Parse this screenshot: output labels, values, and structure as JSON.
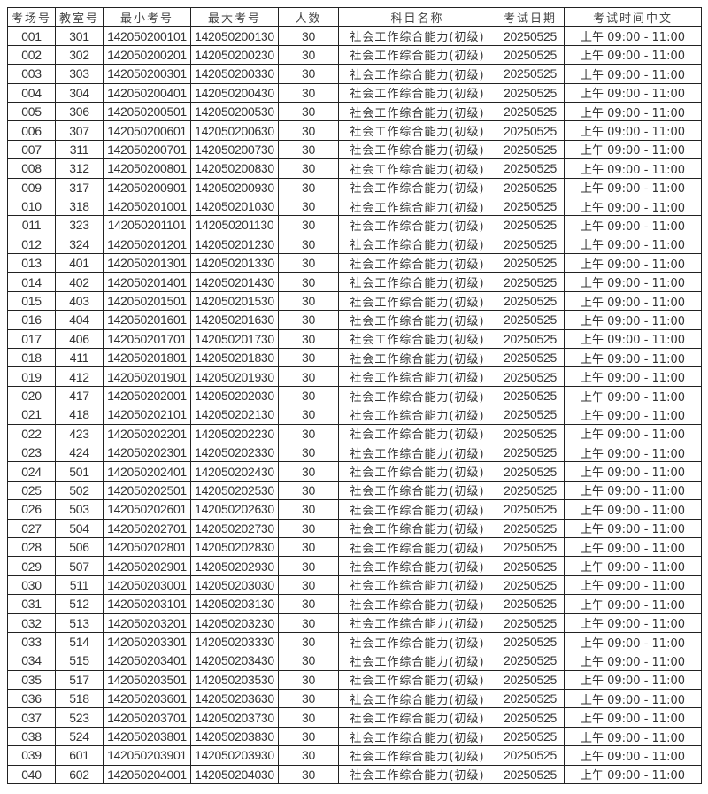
{
  "table": {
    "headers": [
      "考场号",
      "教室号",
      "最小考号",
      "最大考号",
      "人数",
      "科目名称",
      "考试日期",
      "考试时间中文"
    ],
    "rows": [
      [
        "001",
        "301",
        "142050200101",
        "142050200130",
        "30",
        "社会工作综合能力(初级)",
        "20250525",
        "上午 09:00 - 11:00"
      ],
      [
        "002",
        "302",
        "142050200201",
        "142050200230",
        "30",
        "社会工作综合能力(初级)",
        "20250525",
        "上午 09:00 - 11:00"
      ],
      [
        "003",
        "303",
        "142050200301",
        "142050200330",
        "30",
        "社会工作综合能力(初级)",
        "20250525",
        "上午 09:00 - 11:00"
      ],
      [
        "004",
        "304",
        "142050200401",
        "142050200430",
        "30",
        "社会工作综合能力(初级)",
        "20250525",
        "上午 09:00 - 11:00"
      ],
      [
        "005",
        "306",
        "142050200501",
        "142050200530",
        "30",
        "社会工作综合能力(初级)",
        "20250525",
        "上午 09:00 - 11:00"
      ],
      [
        "006",
        "307",
        "142050200601",
        "142050200630",
        "30",
        "社会工作综合能力(初级)",
        "20250525",
        "上午 09:00 - 11:00"
      ],
      [
        "007",
        "311",
        "142050200701",
        "142050200730",
        "30",
        "社会工作综合能力(初级)",
        "20250525",
        "上午 09:00 - 11:00"
      ],
      [
        "008",
        "312",
        "142050200801",
        "142050200830",
        "30",
        "社会工作综合能力(初级)",
        "20250525",
        "上午 09:00 - 11:00"
      ],
      [
        "009",
        "317",
        "142050200901",
        "142050200930",
        "30",
        "社会工作综合能力(初级)",
        "20250525",
        "上午 09:00 - 11:00"
      ],
      [
        "010",
        "318",
        "142050201001",
        "142050201030",
        "30",
        "社会工作综合能力(初级)",
        "20250525",
        "上午 09:00 - 11:00"
      ],
      [
        "011",
        "323",
        "142050201101",
        "142050201130",
        "30",
        "社会工作综合能力(初级)",
        "20250525",
        "上午 09:00 - 11:00"
      ],
      [
        "012",
        "324",
        "142050201201",
        "142050201230",
        "30",
        "社会工作综合能力(初级)",
        "20250525",
        "上午 09:00 - 11:00"
      ],
      [
        "013",
        "401",
        "142050201301",
        "142050201330",
        "30",
        "社会工作综合能力(初级)",
        "20250525",
        "上午 09:00 - 11:00"
      ],
      [
        "014",
        "402",
        "142050201401",
        "142050201430",
        "30",
        "社会工作综合能力(初级)",
        "20250525",
        "上午 09:00 - 11:00"
      ],
      [
        "015",
        "403",
        "142050201501",
        "142050201530",
        "30",
        "社会工作综合能力(初级)",
        "20250525",
        "上午 09:00 - 11:00"
      ],
      [
        "016",
        "404",
        "142050201601",
        "142050201630",
        "30",
        "社会工作综合能力(初级)",
        "20250525",
        "上午 09:00 - 11:00"
      ],
      [
        "017",
        "406",
        "142050201701",
        "142050201730",
        "30",
        "社会工作综合能力(初级)",
        "20250525",
        "上午 09:00 - 11:00"
      ],
      [
        "018",
        "411",
        "142050201801",
        "142050201830",
        "30",
        "社会工作综合能力(初级)",
        "20250525",
        "上午 09:00 - 11:00"
      ],
      [
        "019",
        "412",
        "142050201901",
        "142050201930",
        "30",
        "社会工作综合能力(初级)",
        "20250525",
        "上午 09:00 - 11:00"
      ],
      [
        "020",
        "417",
        "142050202001",
        "142050202030",
        "30",
        "社会工作综合能力(初级)",
        "20250525",
        "上午 09:00 - 11:00"
      ],
      [
        "021",
        "418",
        "142050202101",
        "142050202130",
        "30",
        "社会工作综合能力(初级)",
        "20250525",
        "上午 09:00 - 11:00"
      ],
      [
        "022",
        "423",
        "142050202201",
        "142050202230",
        "30",
        "社会工作综合能力(初级)",
        "20250525",
        "上午 09:00 - 11:00"
      ],
      [
        "023",
        "424",
        "142050202301",
        "142050202330",
        "30",
        "社会工作综合能力(初级)",
        "20250525",
        "上午 09:00 - 11:00"
      ],
      [
        "024",
        "501",
        "142050202401",
        "142050202430",
        "30",
        "社会工作综合能力(初级)",
        "20250525",
        "上午 09:00 - 11:00"
      ],
      [
        "025",
        "502",
        "142050202501",
        "142050202530",
        "30",
        "社会工作综合能力(初级)",
        "20250525",
        "上午 09:00 - 11:00"
      ],
      [
        "026",
        "503",
        "142050202601",
        "142050202630",
        "30",
        "社会工作综合能力(初级)",
        "20250525",
        "上午 09:00 - 11:00"
      ],
      [
        "027",
        "504",
        "142050202701",
        "142050202730",
        "30",
        "社会工作综合能力(初级)",
        "20250525",
        "上午 09:00 - 11:00"
      ],
      [
        "028",
        "506",
        "142050202801",
        "142050202830",
        "30",
        "社会工作综合能力(初级)",
        "20250525",
        "上午 09:00 - 11:00"
      ],
      [
        "029",
        "507",
        "142050202901",
        "142050202930",
        "30",
        "社会工作综合能力(初级)",
        "20250525",
        "上午 09:00 - 11:00"
      ],
      [
        "030",
        "511",
        "142050203001",
        "142050203030",
        "30",
        "社会工作综合能力(初级)",
        "20250525",
        "上午 09:00 - 11:00"
      ],
      [
        "031",
        "512",
        "142050203101",
        "142050203130",
        "30",
        "社会工作综合能力(初级)",
        "20250525",
        "上午 09:00 - 11:00"
      ],
      [
        "032",
        "513",
        "142050203201",
        "142050203230",
        "30",
        "社会工作综合能力(初级)",
        "20250525",
        "上午 09:00 - 11:00"
      ],
      [
        "033",
        "514",
        "142050203301",
        "142050203330",
        "30",
        "社会工作综合能力(初级)",
        "20250525",
        "上午 09:00 - 11:00"
      ],
      [
        "034",
        "515",
        "142050203401",
        "142050203430",
        "30",
        "社会工作综合能力(初级)",
        "20250525",
        "上午 09:00 - 11:00"
      ],
      [
        "035",
        "517",
        "142050203501",
        "142050203530",
        "30",
        "社会工作综合能力(初级)",
        "20250525",
        "上午 09:00 - 11:00"
      ],
      [
        "036",
        "518",
        "142050203601",
        "142050203630",
        "30",
        "社会工作综合能力(初级)",
        "20250525",
        "上午 09:00 - 11:00"
      ],
      [
        "037",
        "523",
        "142050203701",
        "142050203730",
        "30",
        "社会工作综合能力(初级)",
        "20250525",
        "上午 09:00 - 11:00"
      ],
      [
        "038",
        "524",
        "142050203801",
        "142050203830",
        "30",
        "社会工作综合能力(初级)",
        "20250525",
        "上午 09:00 - 11:00"
      ],
      [
        "039",
        "601",
        "142050203901",
        "142050203930",
        "30",
        "社会工作综合能力(初级)",
        "20250525",
        "上午 09:00 - 11:00"
      ],
      [
        "040",
        "602",
        "142050204001",
        "142050204030",
        "30",
        "社会工作综合能力(初级)",
        "20250525",
        "上午 09:00 - 11:00"
      ]
    ]
  }
}
